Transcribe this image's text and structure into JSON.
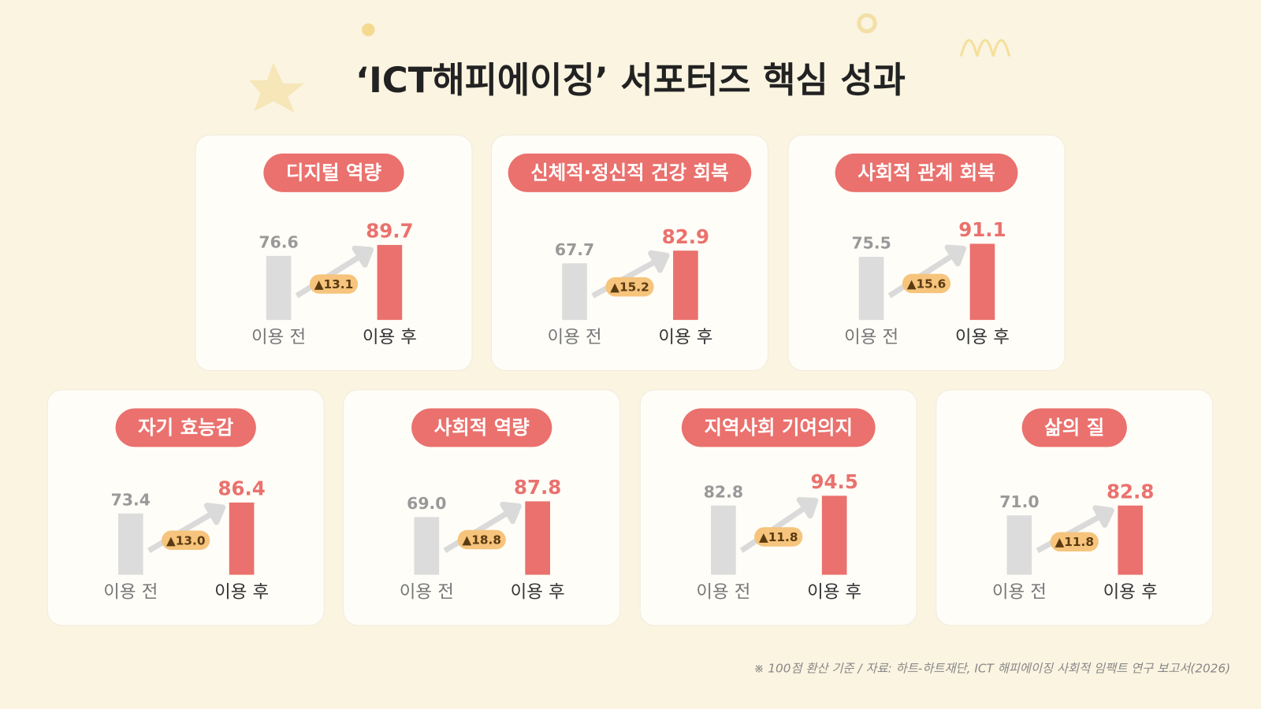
{
  "title": "‘ICT해피에이징’ 서포터즈 핵심 성과",
  "note": "※ 100점 환산 기준 / 자료: 하트-하트재단, ICT 해피에이징 사회적 임팩트 연구 보고서(2026)",
  "chart_data": [
    {
      "type": "bar",
      "title": "디지털 역량",
      "categories": [
        "이용 전",
        "이용 후"
      ],
      "values": [
        76.6,
        89.7
      ],
      "annotation": "▲13.1",
      "colors": [
        "#dcdcdc",
        "#ea716d"
      ],
      "ylim": [
        0,
        100
      ]
    },
    {
      "type": "bar",
      "title": "신체적·정신적 건강 회복",
      "categories": [
        "이용 전",
        "이용 후"
      ],
      "values": [
        67.7,
        82.9
      ],
      "annotation": "▲15.2",
      "colors": [
        "#dcdcdc",
        "#ea716d"
      ],
      "ylim": [
        0,
        100
      ]
    },
    {
      "type": "bar",
      "title": "사회적 관계 회복",
      "categories": [
        "이용 전",
        "이용 후"
      ],
      "values": [
        75.5,
        91.1
      ],
      "annotation": "▲15.6",
      "colors": [
        "#dcdcdc",
        "#ea716d"
      ],
      "ylim": [
        0,
        100
      ]
    },
    {
      "type": "bar",
      "title": "자기 효능감",
      "categories": [
        "이용 전",
        "이용 후"
      ],
      "values": [
        73.4,
        86.4
      ],
      "annotation": "▲13.0",
      "colors": [
        "#dcdcdc",
        "#ea716d"
      ],
      "ylim": [
        0,
        100
      ]
    },
    {
      "type": "bar",
      "title": "사회적 역량",
      "categories": [
        "이용 전",
        "이용 후"
      ],
      "values": [
        69,
        87.8
      ],
      "value_labels": [
        "69.0",
        "87.8"
      ],
      "annotation": "▲18.8",
      "colors": [
        "#dcdcdc",
        "#ea716d"
      ],
      "ylim": [
        0,
        100
      ]
    },
    {
      "type": "bar",
      "title": "지역사회 기여의지",
      "categories": [
        "이용 전",
        "이용 후"
      ],
      "values": [
        82.8,
        94.5
      ],
      "annotation": "▲11.8",
      "colors": [
        "#dcdcdc",
        "#ea716d"
      ],
      "ylim": [
        0,
        100
      ]
    },
    {
      "type": "bar",
      "title": "삶의 질",
      "categories": [
        "이용 전",
        "이용 후"
      ],
      "values": [
        71,
        82.8
      ],
      "value_labels": [
        "71.0",
        "82.8"
      ],
      "annotation": "▲11.8",
      "colors": [
        "#dcdcdc",
        "#ea716d"
      ],
      "ylim": [
        0,
        100
      ]
    }
  ]
}
